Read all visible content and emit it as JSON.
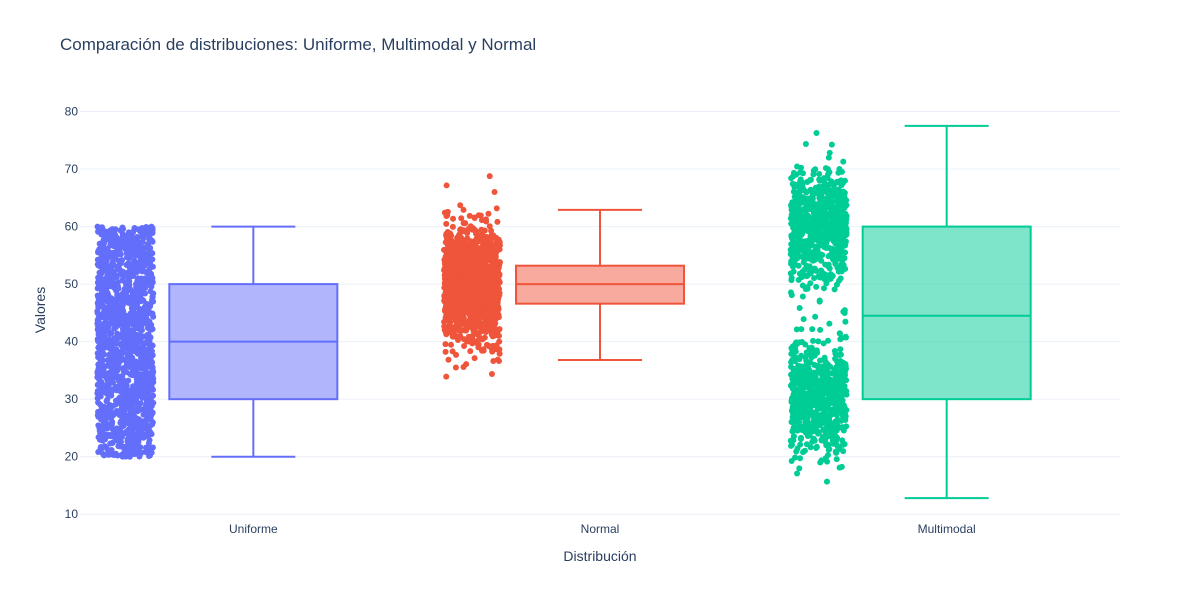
{
  "chart_data": {
    "type": "box",
    "title": "Comparación de distribuciones: Uniforme, Multimodal y Normal",
    "xlabel": "Distribución",
    "ylabel": "Valores",
    "ylim": [
      9,
      82
    ],
    "yticks": [
      10,
      20,
      30,
      40,
      50,
      60,
      70,
      80
    ],
    "categories": [
      "Uniforme",
      "Normal",
      "Multimodal"
    ],
    "boxpoints": "all",
    "grid": true,
    "series": [
      {
        "category": "Uniforme",
        "color": "#636efa",
        "min": 20,
        "q1": 30,
        "median": 40,
        "q3": 50,
        "max": 60,
        "points_range": [
          20,
          60
        ],
        "distribution": "uniform"
      },
      {
        "category": "Normal",
        "color": "#ef553b",
        "min": 36.8,
        "q1": 46.6,
        "median": 50,
        "q3": 53.2,
        "max": 62.9,
        "points_range": [
          28.8,
          69.2
        ],
        "distribution": "normal"
      },
      {
        "category": "Multimodal",
        "color": "#00cc96",
        "min": 12.8,
        "q1": 30,
        "median": 44.5,
        "q3": 60,
        "max": 77.5,
        "points_range": [
          12.8,
          77.5
        ],
        "distribution": "bimodal"
      }
    ]
  }
}
